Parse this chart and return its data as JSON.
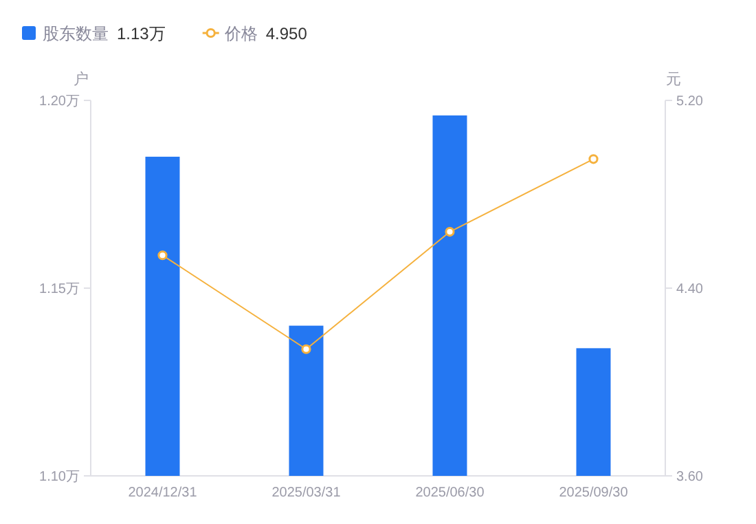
{
  "chart_data": {
    "type": "bar",
    "ylabel": "户",
    "y2label": "元",
    "categories": [
      "2024/12/31",
      "2025/03/31",
      "2025/06/30",
      "2025/09/30"
    ],
    "series": [
      {
        "name": "股东数量",
        "color": "#2477f2",
        "values": [
          1.185,
          1.14,
          1.196,
          1.134
        ]
      },
      {
        "name": "价格",
        "type": "line",
        "axis": "y2",
        "color": "#f5b13d",
        "marker": "circle",
        "values": [
          4.54,
          4.14,
          4.64,
          4.95
        ]
      }
    ],
    "ylim": [
      1.1,
      1.2
    ],
    "yticks": [
      {
        "value": 1.1,
        "label": "1.10万"
      },
      {
        "value": 1.15,
        "label": "1.15万"
      },
      {
        "value": 1.2,
        "label": "1.20万"
      }
    ],
    "y2lim": [
      3.6,
      5.2
    ],
    "y2ticks": [
      {
        "value": 3.6,
        "label": "3.60"
      },
      {
        "value": 4.4,
        "label": "4.40"
      },
      {
        "value": 5.2,
        "label": "5.20"
      }
    ],
    "legend": "top left",
    "grid": false,
    "annotations": [
      "1.13万",
      "4.950"
    ]
  }
}
